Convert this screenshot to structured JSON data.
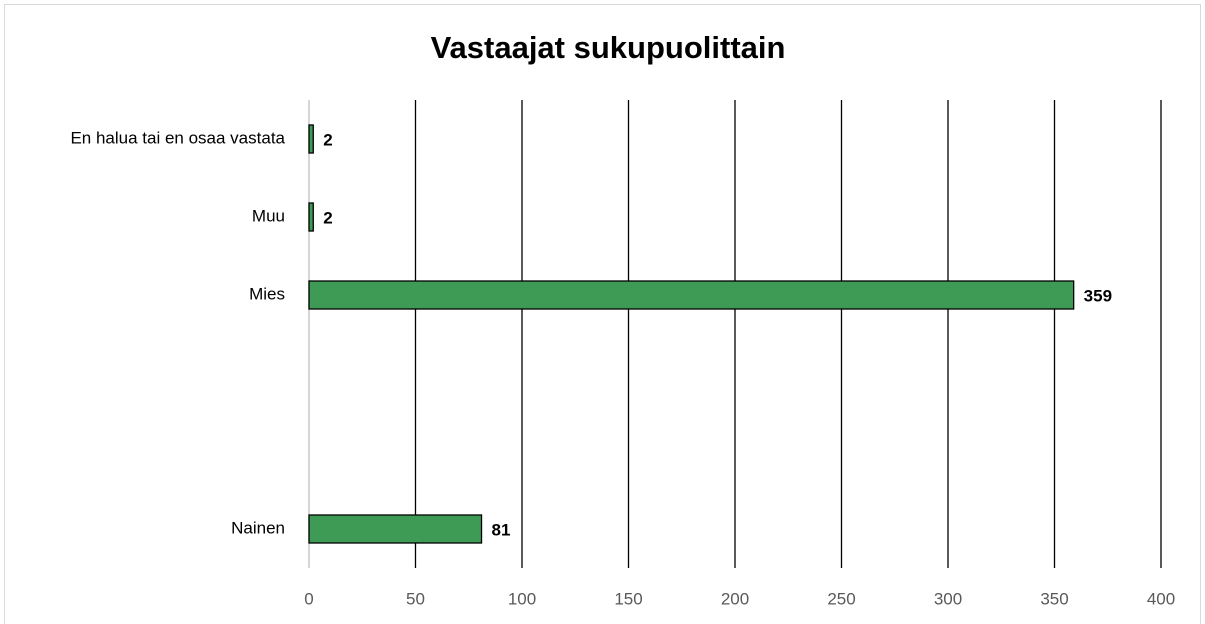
{
  "chart_data": {
    "type": "hbar",
    "title": "Vastaajat sukupuolittain",
    "categories": [
      "En halua tai en osaa vastata",
      "Muu",
      "Mies",
      null,
      null,
      "Nainen"
    ],
    "values": [
      2,
      2,
      359,
      null,
      null,
      81
    ],
    "color": "#3e9b56",
    "xlim": [
      0,
      400
    ],
    "xticks": [
      0,
      50,
      100,
      150,
      200,
      250,
      300,
      350,
      400
    ],
    "grid": true
  }
}
